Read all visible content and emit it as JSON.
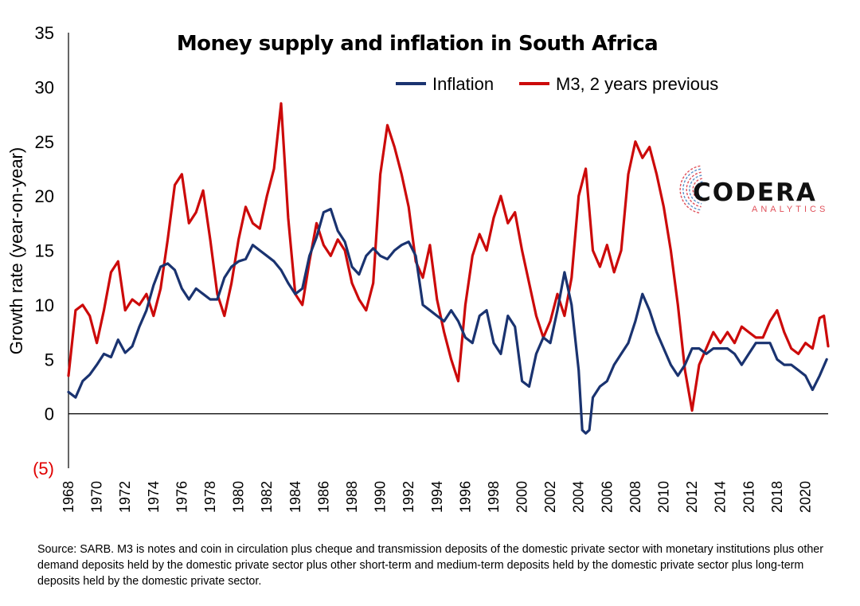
{
  "chart_data": {
    "type": "line",
    "title": "Money supply and inflation in South Africa",
    "ylabel": "Growth rate (year-on-year)",
    "xlabel": "",
    "ylim": [
      -5,
      35
    ],
    "xlim": [
      1968,
      2021.6
    ],
    "yticks": [
      {
        "value": 35,
        "label": "35"
      },
      {
        "value": 30,
        "label": "30"
      },
      {
        "value": 25,
        "label": "25"
      },
      {
        "value": 20,
        "label": "20"
      },
      {
        "value": 15,
        "label": "15"
      },
      {
        "value": 10,
        "label": "10"
      },
      {
        "value": 5,
        "label": "5"
      },
      {
        "value": 0,
        "label": "0"
      },
      {
        "value": -5,
        "label": "(5)",
        "color": "#e00000"
      }
    ],
    "xticks": [
      "1968",
      "1970",
      "1972",
      "1974",
      "1976",
      "1978",
      "1980",
      "1982",
      "1984",
      "1986",
      "1988",
      "1990",
      "1992",
      "1994",
      "1996",
      "1998",
      "2000",
      "2002",
      "2004",
      "2006",
      "2008",
      "2010",
      "2012",
      "2014",
      "2016",
      "2018",
      "2020"
    ],
    "grid": false,
    "legend_position": "top-right",
    "series": [
      {
        "name": "Inflation",
        "color": "#1a3370",
        "points": [
          [
            1968.0,
            2.0
          ],
          [
            1968.5,
            1.5
          ],
          [
            1969.0,
            3.0
          ],
          [
            1969.5,
            3.6
          ],
          [
            1970.0,
            4.5
          ],
          [
            1970.5,
            5.5
          ],
          [
            1971.0,
            5.2
          ],
          [
            1971.5,
            6.8
          ],
          [
            1972.0,
            5.6
          ],
          [
            1972.5,
            6.2
          ],
          [
            1973.0,
            8.0
          ],
          [
            1973.5,
            9.5
          ],
          [
            1974.0,
            11.8
          ],
          [
            1974.5,
            13.5
          ],
          [
            1975.0,
            13.8
          ],
          [
            1975.5,
            13.2
          ],
          [
            1976.0,
            11.5
          ],
          [
            1976.5,
            10.5
          ],
          [
            1977.0,
            11.5
          ],
          [
            1977.5,
            11.0
          ],
          [
            1978.0,
            10.5
          ],
          [
            1978.5,
            10.5
          ],
          [
            1979.0,
            12.5
          ],
          [
            1979.5,
            13.5
          ],
          [
            1980.0,
            14.0
          ],
          [
            1980.5,
            14.2
          ],
          [
            1981.0,
            15.5
          ],
          [
            1981.5,
            15.0
          ],
          [
            1982.0,
            14.5
          ],
          [
            1982.5,
            14.0
          ],
          [
            1983.0,
            13.2
          ],
          [
            1983.5,
            12.0
          ],
          [
            1984.0,
            11.0
          ],
          [
            1984.5,
            11.5
          ],
          [
            1985.0,
            14.5
          ],
          [
            1985.5,
            16.2
          ],
          [
            1986.0,
            18.5
          ],
          [
            1986.5,
            18.8
          ],
          [
            1987.0,
            16.8
          ],
          [
            1987.5,
            15.8
          ],
          [
            1988.0,
            13.5
          ],
          [
            1988.5,
            12.8
          ],
          [
            1989.0,
            14.5
          ],
          [
            1989.5,
            15.2
          ],
          [
            1990.0,
            14.5
          ],
          [
            1990.5,
            14.2
          ],
          [
            1991.0,
            15.0
          ],
          [
            1991.5,
            15.5
          ],
          [
            1992.0,
            15.8
          ],
          [
            1992.5,
            14.5
          ],
          [
            1993.0,
            10.0
          ],
          [
            1993.5,
            9.5
          ],
          [
            1994.0,
            9.0
          ],
          [
            1994.5,
            8.5
          ],
          [
            1995.0,
            9.5
          ],
          [
            1995.5,
            8.5
          ],
          [
            1996.0,
            7.0
          ],
          [
            1996.5,
            6.5
          ],
          [
            1997.0,
            9.0
          ],
          [
            1997.5,
            9.5
          ],
          [
            1998.0,
            6.5
          ],
          [
            1998.5,
            5.5
          ],
          [
            1999.0,
            9.0
          ],
          [
            1999.5,
            8.0
          ],
          [
            2000.0,
            3.0
          ],
          [
            2000.5,
            2.5
          ],
          [
            2001.0,
            5.5
          ],
          [
            2001.5,
            7.0
          ],
          [
            2002.0,
            6.5
          ],
          [
            2002.5,
            9.5
          ],
          [
            2003.0,
            13.0
          ],
          [
            2003.5,
            10.0
          ],
          [
            2004.0,
            4.0
          ],
          [
            2004.25,
            -1.5
          ],
          [
            2004.5,
            -1.8
          ],
          [
            2004.75,
            -1.5
          ],
          [
            2005.0,
            1.5
          ],
          [
            2005.5,
            2.5
          ],
          [
            2006.0,
            3.0
          ],
          [
            2006.5,
            4.5
          ],
          [
            2007.0,
            5.5
          ],
          [
            2007.5,
            6.5
          ],
          [
            2008.0,
            8.5
          ],
          [
            2008.5,
            11.0
          ],
          [
            2009.0,
            9.5
          ],
          [
            2009.5,
            7.5
          ],
          [
            2010.0,
            6.0
          ],
          [
            2010.5,
            4.5
          ],
          [
            2011.0,
            3.5
          ],
          [
            2011.5,
            4.5
          ],
          [
            2012.0,
            6.0
          ],
          [
            2012.5,
            6.0
          ],
          [
            2013.0,
            5.5
          ],
          [
            2013.5,
            6.0
          ],
          [
            2014.0,
            6.0
          ],
          [
            2014.5,
            6.0
          ],
          [
            2015.0,
            5.5
          ],
          [
            2015.5,
            4.5
          ],
          [
            2016.0,
            5.5
          ],
          [
            2016.5,
            6.5
          ],
          [
            2017.0,
            6.5
          ],
          [
            2017.5,
            6.5
          ],
          [
            2018.0,
            5.0
          ],
          [
            2018.5,
            4.5
          ],
          [
            2019.0,
            4.5
          ],
          [
            2019.5,
            4.0
          ],
          [
            2020.0,
            3.5
          ],
          [
            2020.5,
            2.2
          ],
          [
            2021.0,
            3.5
          ],
          [
            2021.5,
            5.0
          ]
        ]
      },
      {
        "name": "M3, 2 years previous",
        "color": "#cc0a0a",
        "points": [
          [
            1968.0,
            3.5
          ],
          [
            1968.5,
            9.5
          ],
          [
            1969.0,
            10.0
          ],
          [
            1969.5,
            9.0
          ],
          [
            1970.0,
            6.5
          ],
          [
            1970.5,
            9.5
          ],
          [
            1971.0,
            13.0
          ],
          [
            1971.5,
            14.0
          ],
          [
            1972.0,
            9.5
          ],
          [
            1972.5,
            10.5
          ],
          [
            1973.0,
            10.0
          ],
          [
            1973.5,
            11.0
          ],
          [
            1974.0,
            9.0
          ],
          [
            1974.5,
            11.5
          ],
          [
            1975.0,
            16.0
          ],
          [
            1975.5,
            21.0
          ],
          [
            1976.0,
            22.0
          ],
          [
            1976.5,
            17.5
          ],
          [
            1977.0,
            18.5
          ],
          [
            1977.5,
            20.5
          ],
          [
            1978.0,
            16.0
          ],
          [
            1978.5,
            11.0
          ],
          [
            1979.0,
            9.0
          ],
          [
            1979.5,
            12.0
          ],
          [
            1980.0,
            16.0
          ],
          [
            1980.5,
            19.0
          ],
          [
            1981.0,
            17.5
          ],
          [
            1981.5,
            17.0
          ],
          [
            1982.0,
            20.0
          ],
          [
            1982.5,
            22.5
          ],
          [
            1983.0,
            28.5
          ],
          [
            1983.5,
            18.0
          ],
          [
            1984.0,
            11.0
          ],
          [
            1984.5,
            10.0
          ],
          [
            1985.0,
            14.0
          ],
          [
            1985.5,
            17.5
          ],
          [
            1986.0,
            15.5
          ],
          [
            1986.5,
            14.5
          ],
          [
            1987.0,
            16.0
          ],
          [
            1987.5,
            15.0
          ],
          [
            1988.0,
            12.0
          ],
          [
            1988.5,
            10.5
          ],
          [
            1989.0,
            9.5
          ],
          [
            1989.5,
            12.0
          ],
          [
            1990.0,
            22.0
          ],
          [
            1990.5,
            26.5
          ],
          [
            1991.0,
            24.5
          ],
          [
            1991.5,
            22.0
          ],
          [
            1992.0,
            19.0
          ],
          [
            1992.5,
            14.0
          ],
          [
            1993.0,
            12.5
          ],
          [
            1993.5,
            15.5
          ],
          [
            1994.0,
            10.5
          ],
          [
            1994.5,
            7.5
          ],
          [
            1995.0,
            5.0
          ],
          [
            1995.5,
            3.0
          ],
          [
            1996.0,
            10.0
          ],
          [
            1996.5,
            14.5
          ],
          [
            1997.0,
            16.5
          ],
          [
            1997.5,
            15.0
          ],
          [
            1998.0,
            18.0
          ],
          [
            1998.5,
            20.0
          ],
          [
            1999.0,
            17.5
          ],
          [
            1999.5,
            18.5
          ],
          [
            2000.0,
            15.0
          ],
          [
            2000.5,
            12.0
          ],
          [
            2001.0,
            9.0
          ],
          [
            2001.5,
            7.0
          ],
          [
            2002.0,
            8.5
          ],
          [
            2002.5,
            11.0
          ],
          [
            2003.0,
            9.0
          ],
          [
            2003.5,
            12.5
          ],
          [
            2004.0,
            20.0
          ],
          [
            2004.5,
            22.5
          ],
          [
            2005.0,
            15.0
          ],
          [
            2005.5,
            13.5
          ],
          [
            2006.0,
            15.5
          ],
          [
            2006.5,
            13.0
          ],
          [
            2007.0,
            15.0
          ],
          [
            2007.5,
            22.0
          ],
          [
            2008.0,
            25.0
          ],
          [
            2008.5,
            23.5
          ],
          [
            2009.0,
            24.5
          ],
          [
            2009.5,
            22.0
          ],
          [
            2010.0,
            19.0
          ],
          [
            2010.5,
            15.0
          ],
          [
            2011.0,
            10.0
          ],
          [
            2011.5,
            4.0
          ],
          [
            2012.0,
            0.3
          ],
          [
            2012.5,
            4.5
          ],
          [
            2013.0,
            6.0
          ],
          [
            2013.5,
            7.5
          ],
          [
            2014.0,
            6.5
          ],
          [
            2014.5,
            7.5
          ],
          [
            2015.0,
            6.5
          ],
          [
            2015.5,
            8.0
          ],
          [
            2016.0,
            7.5
          ],
          [
            2016.5,
            7.0
          ],
          [
            2017.0,
            7.0
          ],
          [
            2017.5,
            8.5
          ],
          [
            2018.0,
            9.5
          ],
          [
            2018.5,
            7.5
          ],
          [
            2019.0,
            6.0
          ],
          [
            2019.5,
            5.5
          ],
          [
            2020.0,
            6.5
          ],
          [
            2020.5,
            6.0
          ],
          [
            2021.0,
            8.8
          ],
          [
            2021.3,
            9.0
          ],
          [
            2021.6,
            6.2
          ]
        ]
      }
    ]
  },
  "logo": {
    "name": "CODERA",
    "tagline": "ANALYTICS",
    "accent_color": "#e0505a",
    "mark_color": "#5a90c8"
  },
  "source_note": "Source: SARB. M3 is notes and coin in circulation plus cheque and transmission deposits of the domestic private sector with monetary institutions plus other demand deposits held by the domestic private sector plus other short-term and medium-term deposits held by the domestic private sector plus long-term deposits held by the domestic private sector."
}
